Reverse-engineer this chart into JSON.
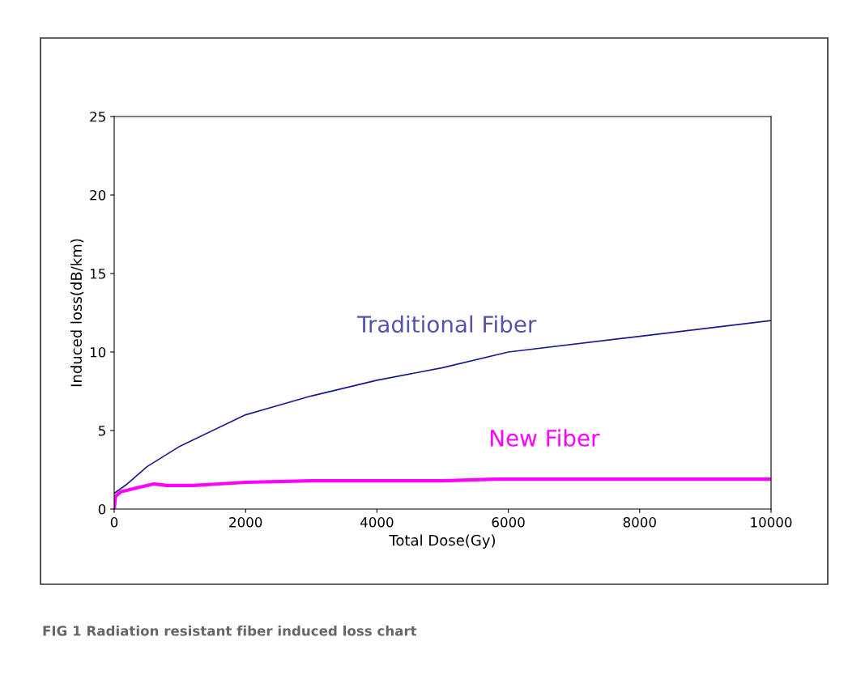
{
  "chart_data": {
    "type": "line",
    "xlabel": "Total Dose(Gy)",
    "ylabel": "Induced loss(dB/km)",
    "xlim": [
      0,
      10000
    ],
    "xticks": [
      0,
      2000,
      4000,
      6000,
      8000,
      10000
    ],
    "ylim": [
      0,
      25
    ],
    "yticks": [
      0,
      5,
      10,
      15,
      20,
      25
    ],
    "grid": false,
    "legend": false,
    "marker": "none",
    "line_style": "solid",
    "annotations": [
      "FIG 1 Radiation resistant fiber induced loss chart"
    ],
    "series": [
      {
        "name": "Traditional Fiber",
        "color": "#1a1a90",
        "x": [
          0,
          200,
          500,
          1000,
          2000,
          3000,
          4000,
          5000,
          6000,
          8000,
          10000
        ],
        "values": [
          1.0,
          1.6,
          2.7,
          4.0,
          6.0,
          7.2,
          8.2,
          9.0,
          10.0,
          11.0,
          12.0
        ]
      },
      {
        "name": "New Fiber",
        "color": "#ff00ff",
        "x": [
          0,
          20,
          100,
          300,
          600,
          800,
          1200,
          2000,
          3000,
          5000,
          5800,
          10000
        ],
        "values": [
          0,
          0.8,
          1.1,
          1.3,
          1.6,
          1.5,
          1.5,
          1.7,
          1.8,
          1.8,
          1.9,
          1.9
        ]
      }
    ]
  }
}
